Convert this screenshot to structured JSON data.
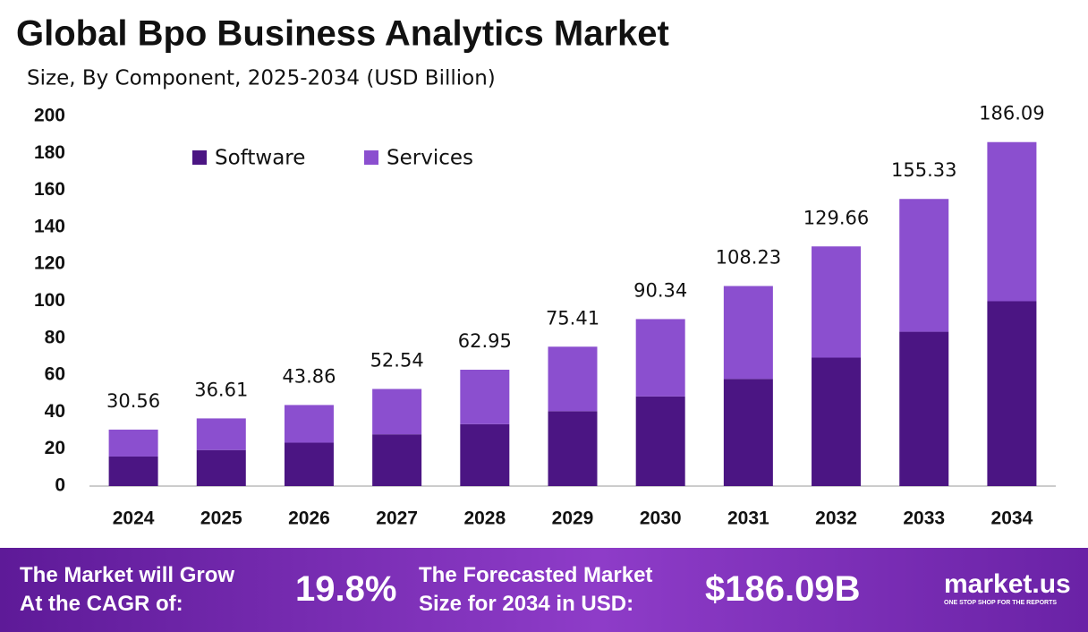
{
  "chart_data": {
    "type": "stacked_bar",
    "title": "Global Bpo Business Analytics Market",
    "subtitle": "Size, By Component, 2025-2034 (USD Billion)",
    "categories": [
      "2024",
      "2025",
      "2026",
      "2027",
      "2028",
      "2029",
      "2030",
      "2031",
      "2032",
      "2033",
      "2034"
    ],
    "series": [
      {
        "name": "Software",
        "color": "#4b1583",
        "values": [
          16,
          19.5,
          23.5,
          28,
          33.5,
          40.5,
          48.5,
          58,
          69.5,
          83.5,
          100
        ]
      },
      {
        "name": "Services",
        "color": "#8b4fcf",
        "values": [
          14.56,
          17.11,
          20.36,
          24.54,
          29.45,
          34.91,
          41.84,
          50.23,
          60.16,
          71.83,
          86.09
        ]
      }
    ],
    "totals": [
      30.56,
      36.61,
      43.86,
      52.54,
      62.95,
      75.41,
      90.34,
      108.23,
      129.66,
      155.33,
      186.09
    ],
    "ylim": [
      0,
      200
    ],
    "yticks": [
      0,
      20,
      40,
      60,
      80,
      100,
      120,
      140,
      160,
      180,
      200
    ]
  },
  "footer": {
    "cagr_text": [
      "The Market will Grow",
      "At the CAGR of:"
    ],
    "cagr": "19.8%",
    "forecast_text": [
      "The Forecasted Market",
      "Size for 2034 in USD:"
    ],
    "forecast": "$186.09B",
    "brand": "market.us",
    "tagline": "ONE STOP SHOP FOR THE REPORTS"
  }
}
